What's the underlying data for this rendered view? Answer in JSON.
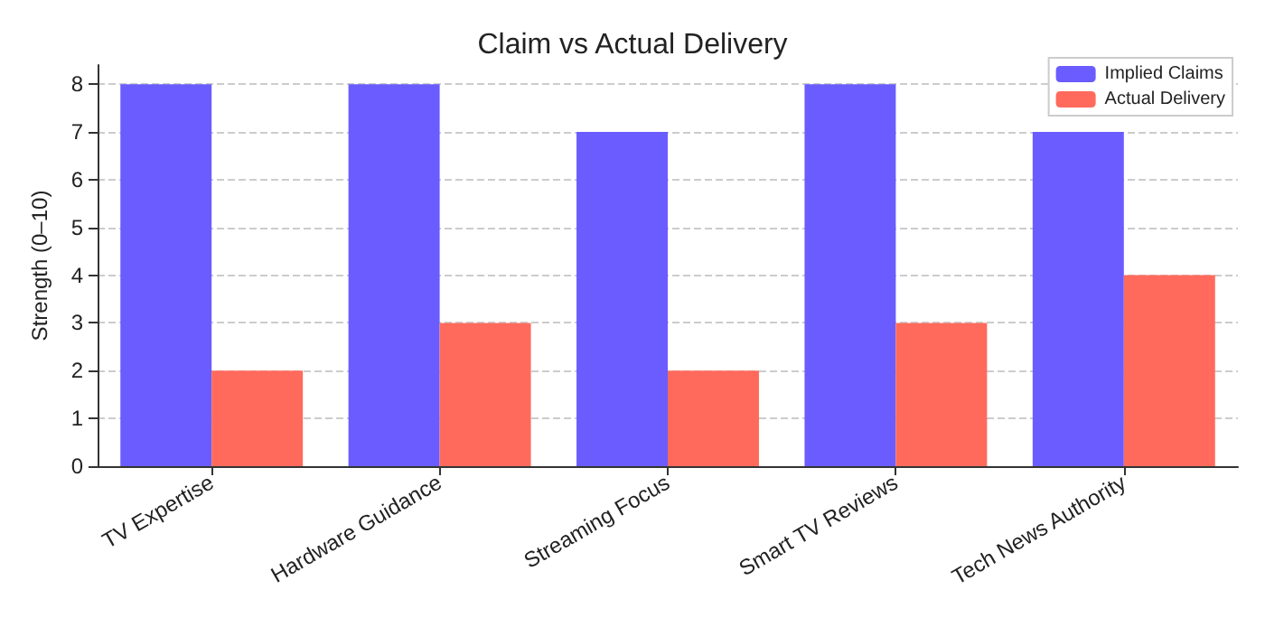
{
  "chart_data": {
    "type": "bar",
    "title": "Claim vs Actual Delivery",
    "ylabel": "Strength (0–10)",
    "categories": [
      "TV Expertise",
      "Hardware Guidance",
      "Streaming Focus",
      "Smart TV Reviews",
      "Tech News Authority"
    ],
    "series": [
      {
        "name": "Implied Claims",
        "color": "#6a5cff",
        "values": [
          8,
          8,
          7,
          8,
          7
        ]
      },
      {
        "name": "Actual Delivery",
        "color": "#ff6a5c",
        "values": [
          2,
          3,
          2,
          3,
          4
        ]
      }
    ],
    "ylim": [
      0,
      8.4
    ],
    "yticks": [
      0,
      1,
      2,
      3,
      4,
      5,
      6,
      7,
      8
    ],
    "grid": "y",
    "legend": "top right"
  }
}
